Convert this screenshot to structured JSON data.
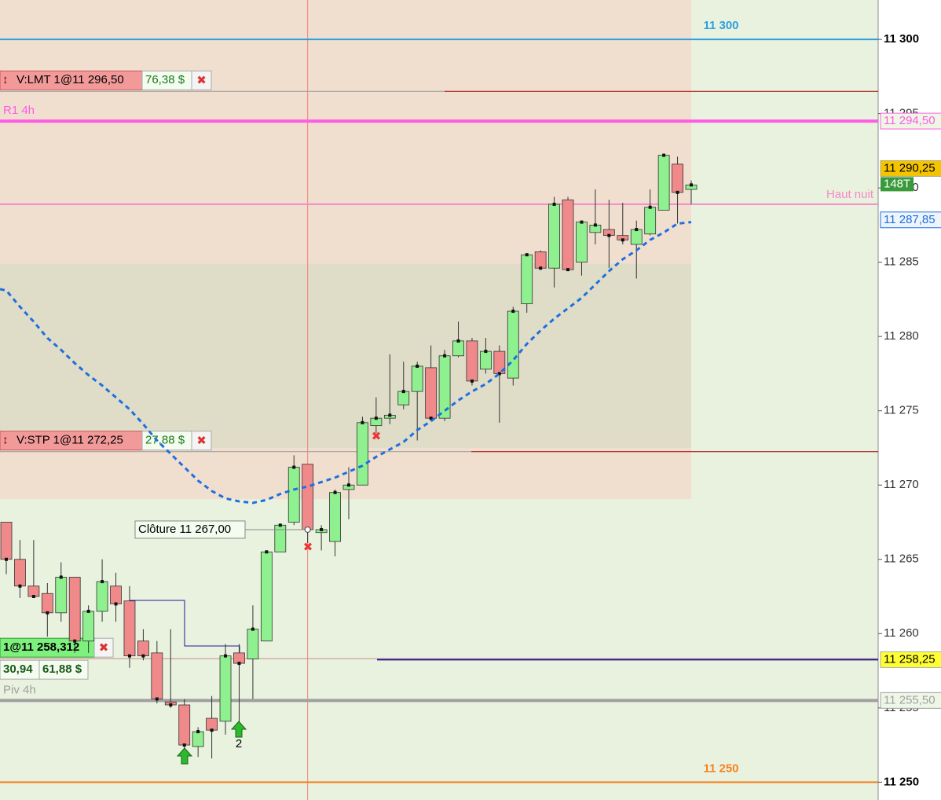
{
  "chart_data": {
    "type": "candlestick",
    "ylim": [
      11248.8,
      11302.65
    ],
    "yticks": [
      {
        "value": 11250,
        "label": "11 250"
      },
      {
        "value": 11255,
        "label": "11 255"
      },
      {
        "value": 11260,
        "label": "11 260"
      },
      {
        "value": 11265,
        "label": "11 265"
      },
      {
        "value": 11270,
        "label": "11 270"
      },
      {
        "value": 11275,
        "label": "11 275"
      },
      {
        "value": 11280,
        "label": "11 280"
      },
      {
        "value": 11285,
        "label": "11 285"
      },
      {
        "value": 11290,
        "label": "11 290"
      },
      {
        "value": 11295,
        "label": "11 295"
      },
      {
        "value": 11300,
        "label": "11 300"
      }
    ],
    "up_color": "#8ef08e",
    "down_color": "#f08a8a",
    "open": [
      11267.5,
      11265.0,
      11263.2,
      11262.7,
      11261.4,
      11263.8,
      11259.5,
      11261.5,
      11263.2,
      11262.2,
      11259.5,
      11258.7,
      11255.4,
      11255.2,
      11252.4,
      11254.3,
      11254.1,
      11258.7,
      11258.3,
      11259.5,
      11265.5,
      11267.5,
      11271.4,
      11266.8,
      11266.2,
      11269.7,
      11270.0,
      11274.0,
      11274.5,
      11275.4,
      11276.3,
      11277.9,
      11274.5,
      11278.7,
      11279.7,
      11277.8,
      11279.0,
      11277.2,
      11282.2,
      11285.7,
      11284.6,
      11289.2,
      11285.0,
      11287.0,
      11287.2,
      11286.8,
      11286.2,
      11286.9,
      11288.5,
      11291.6,
      11289.9
    ],
    "high": [
      11267.5,
      11266.3,
      11266.3,
      11263.4,
      11264.8,
      11263.8,
      11261.9,
      11265.0,
      11264.1,
      11263.2,
      11260.3,
      11259.5,
      11260.3,
      11255.6,
      11253.7,
      11255.8,
      11259.3,
      11259.3,
      11261.9,
      11265.6,
      11267.3,
      11272.0,
      11271.4,
      11267.3,
      11269.7,
      11271.2,
      11274.6,
      11275.9,
      11278.8,
      11278.3,
      11278.3,
      11279.4,
      11279.1,
      11281.0,
      11279.9,
      11279.9,
      11279.4,
      11282.0,
      11285.6,
      11285.8,
      11289.4,
      11289.4,
      11287.8,
      11289.9,
      11289.2,
      11289.0,
      11287.8,
      11289.9,
      11292.3,
      11292.1,
      11290.5
    ],
    "low": [
      11264.0,
      11262.4,
      11262.4,
      11259.8,
      11260.8,
      11258.7,
      11258.7,
      11260.8,
      11260.8,
      11257.7,
      11258.2,
      11255.3,
      11255.0,
      11252.1,
      11251.7,
      11251.6,
      11253.2,
      11254.0,
      11255.6,
      11259.5,
      11265.5,
      11267.3,
      11266.1,
      11265.6,
      11265.2,
      11267.7,
      11270.0,
      11273.5,
      11274.1,
      11275.1,
      11273.0,
      11274.3,
      11274.3,
      11278.6,
      11276.7,
      11277.5,
      11274.2,
      11276.7,
      11281.6,
      11284.7,
      11283.3,
      11284.4,
      11284.1,
      11286.2,
      11284.6,
      11286.2,
      11283.9,
      11286.8,
      11288.5,
      11287.6,
      11288.9
    ],
    "close": [
      11265.0,
      11263.2,
      11262.5,
      11261.4,
      11263.8,
      11259.5,
      11261.5,
      11263.5,
      11262.0,
      11258.5,
      11258.5,
      11255.6,
      11255.2,
      11252.5,
      11253.4,
      11253.5,
      11258.5,
      11258.0,
      11260.3,
      11265.5,
      11267.3,
      11271.2,
      11267.0,
      11267.0,
      11269.5,
      11270.0,
      11274.2,
      11274.5,
      11274.7,
      11276.3,
      11278.0,
      11274.5,
      11278.7,
      11279.7,
      11277.0,
      11279.0,
      11277.5,
      11281.7,
      11285.5,
      11284.6,
      11288.9,
      11284.5,
      11287.7,
      11287.5,
      11286.8,
      11286.5,
      11287.2,
      11288.7,
      11292.2,
      11289.7,
      11290.2
    ],
    "ma": {
      "color": "#1f6fe0",
      "values": [
        11283.1,
        11282.0,
        11281.0,
        11279.9,
        11279.1,
        11278.2,
        11277.4,
        11276.7,
        11275.9,
        11275.1,
        11274.1,
        11273.0,
        11272.1,
        11271.2,
        11270.3,
        11269.6,
        11269.1,
        11268.9,
        11268.8,
        11269.0,
        11269.4,
        11269.7,
        11269.9,
        11270.2,
        11270.5,
        11270.9,
        11271.3,
        11271.9,
        11272.4,
        11272.9,
        11273.7,
        11274.3,
        11275.0,
        11275.7,
        11276.3,
        11276.8,
        11277.5,
        11278.4,
        11279.5,
        11280.4,
        11281.2,
        11281.9,
        11282.6,
        11283.5,
        11284.4,
        11285.2,
        11285.8,
        11286.5,
        11287.0,
        11287.6,
        11287.7
      ],
      "tag": "11 287,85",
      "tag_value": 11287.85
    },
    "zones": [
      {
        "from": 11269.05,
        "to": 11302.65,
        "color": "#f0dfcf"
      },
      {
        "from": 11272.5,
        "to": 11284.9,
        "color": "#dfdcc8"
      }
    ],
    "levels": [
      {
        "value": 11300,
        "label": "11 300",
        "color": "#2aa0e0"
      },
      {
        "value": 11250,
        "label": "11 250",
        "color": "#f58220"
      },
      {
        "value": 11294.5,
        "label": "R1 4h",
        "tag": "11 294,50",
        "color": "#ff5ce6"
      },
      {
        "value": 11288.9,
        "label": "Haut nuit",
        "color": "#f58ac8"
      },
      {
        "value": 11255.5,
        "label": "Piv 4h",
        "tag": "11 255,50",
        "color": "#a0a0a0"
      },
      {
        "value": 11258.25,
        "tag": "11 258,25",
        "color": "#1a1a9a"
      }
    ],
    "orders": [
      {
        "value": 11296.5,
        "label": "V:LMT 1@11 296,50",
        "pnl": "76,38 $"
      },
      {
        "value": 11272.25,
        "label": "V:STP 1@11 272,25",
        "pnl": "27,88 $"
      }
    ],
    "position": {
      "value": 11258.312,
      "label": "1@11 258,312",
      "pnl": [
        "30,94",
        "61,88 $"
      ]
    },
    "last": {
      "value": 11290.25,
      "tag": "11 290,25",
      "timer": "148T"
    },
    "cursor": {
      "label": "Clôture  11 267,00",
      "value": 11267.0
    },
    "annotations": [
      "2"
    ]
  }
}
